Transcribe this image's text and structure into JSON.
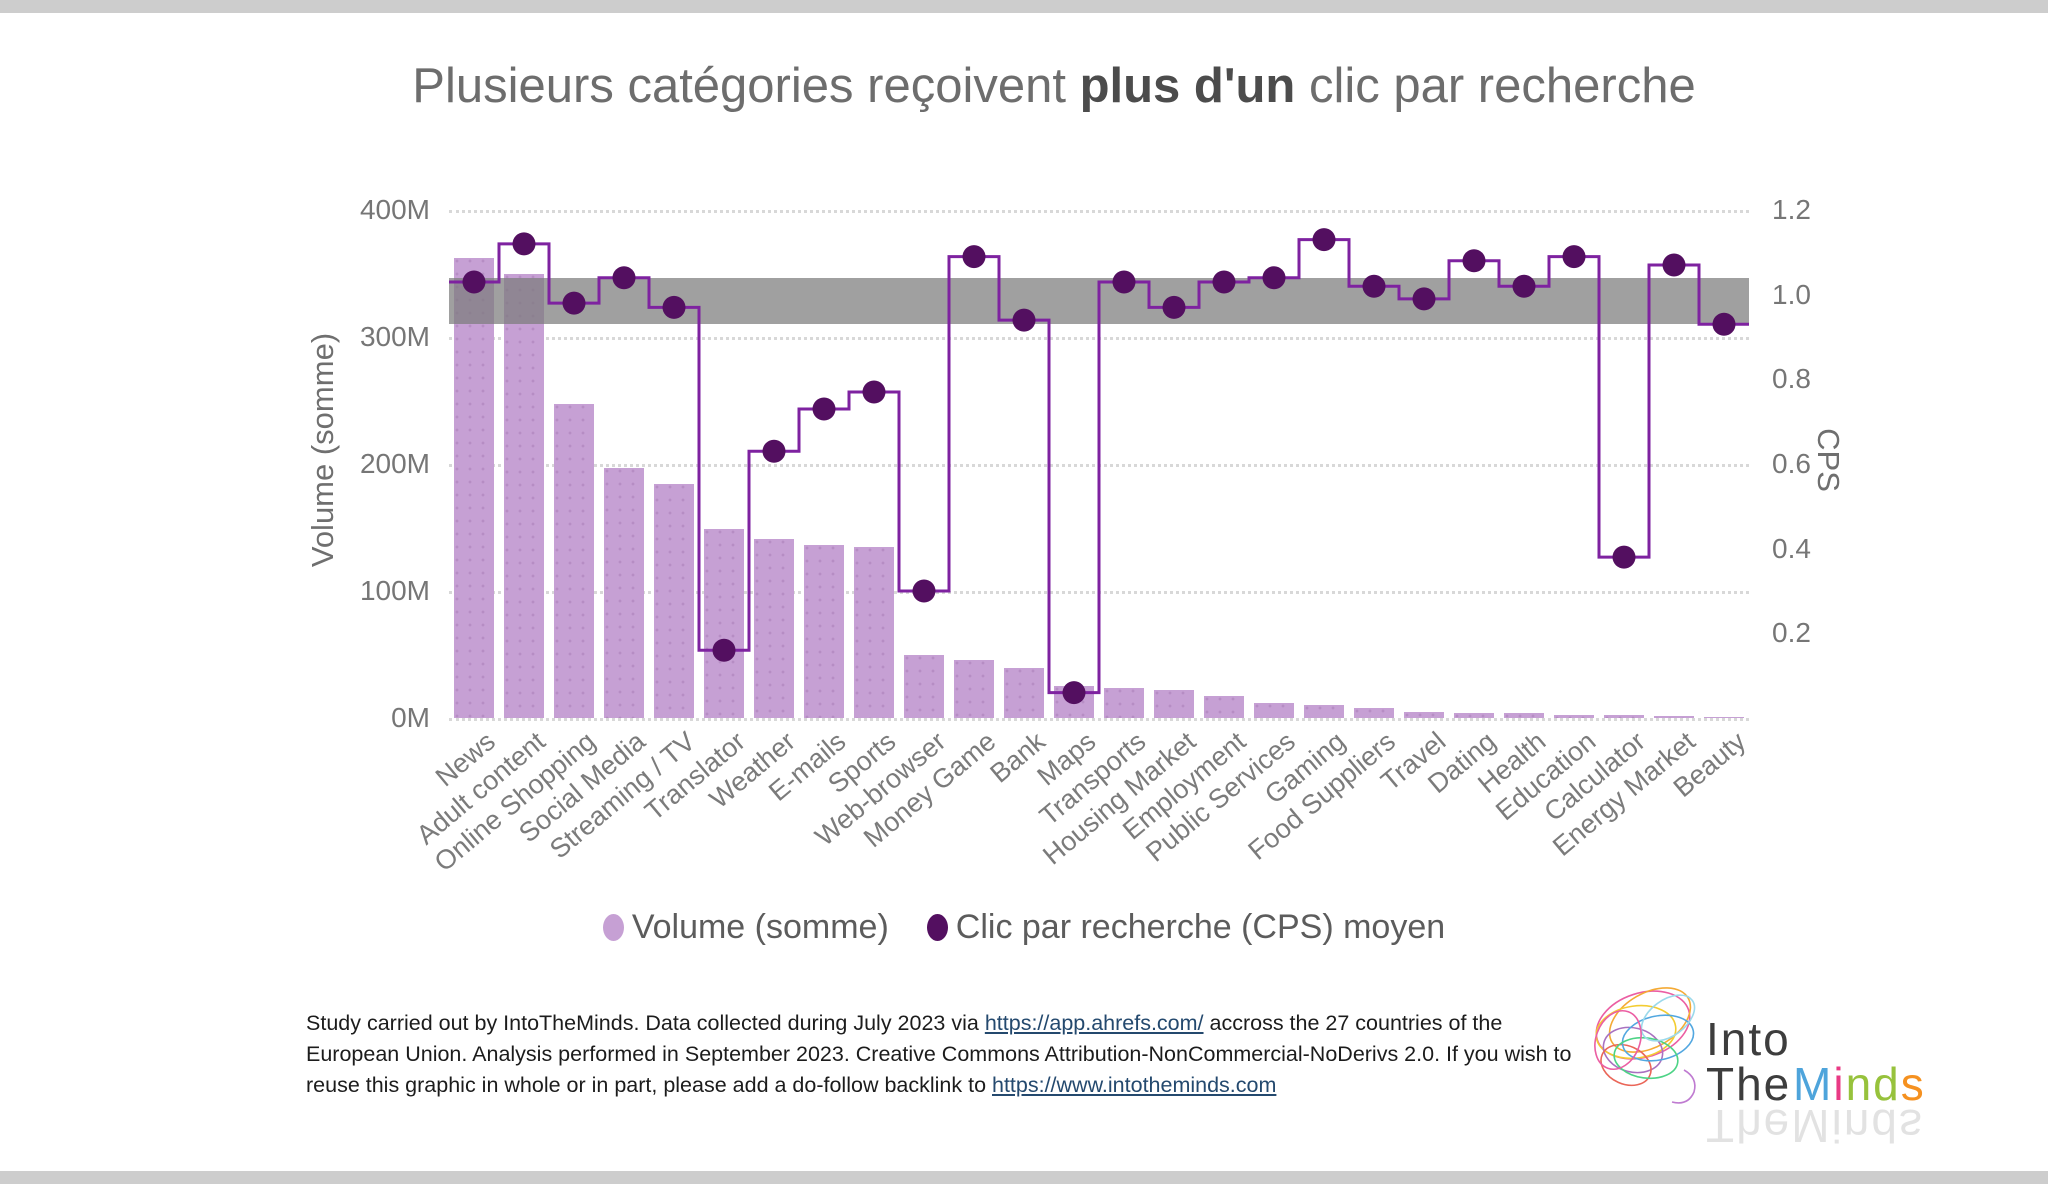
{
  "title": {
    "prefix": "Plusieurs catégories reçoivent ",
    "bold": "plus d'un",
    "suffix": " clic par recherche"
  },
  "chart_data": {
    "type": "combo bar + stepped line",
    "categories": [
      "News",
      "Adult content",
      "Online Shopping",
      "Social Media",
      "Streaming / TV",
      "Translator",
      "Weather",
      "E-mails",
      "Sports",
      "Web-browser",
      "Money Game",
      "Bank",
      "Maps",
      "Transports",
      "Housing Market",
      "Employment",
      "Public Services",
      "Gaming",
      "Food Suppliers",
      "Travel",
      "Dating",
      "Health",
      "Education",
      "Calculator",
      "Energy Market",
      "Beauty"
    ],
    "series": [
      {
        "name": "Volume (somme)",
        "type": "bar",
        "axis": "left",
        "unit": "millions",
        "values": [
          362,
          350,
          247,
          197,
          184,
          149,
          141,
          136,
          135,
          50,
          46,
          39,
          25,
          24,
          22,
          17,
          12,
          10,
          8,
          5,
          4.2,
          4.2,
          2.5,
          2,
          1.2,
          0.8
        ]
      },
      {
        "name": "Clic par recherche (CPS) moyen",
        "type": "step-line",
        "axis": "right",
        "values": [
          1.03,
          1.12,
          0.98,
          1.04,
          0.97,
          0.16,
          0.63,
          0.73,
          0.77,
          0.3,
          1.09,
          0.94,
          0.06,
          1.03,
          0.97,
          1.03,
          1.04,
          1.13,
          1.02,
          0.99,
          1.08,
          1.02,
          1.09,
          0.38,
          1.07,
          0.93
        ]
      }
    ],
    "left_axis": {
      "title": "Volume (somme)",
      "tick_labels": [
        "400M",
        "300M",
        "200M",
        "100M",
        "0M"
      ],
      "min": 0,
      "max": 400
    },
    "right_axis": {
      "title": "CPS",
      "tick_labels": [
        "1.2",
        "1.0",
        "0.8",
        "0.6",
        "0.4",
        "0.2"
      ],
      "tick_values": [
        1.2,
        1.0,
        0.8,
        0.6,
        0.4,
        0.2
      ],
      "min": 0,
      "max": 1.2
    },
    "reference_band": {
      "from": 0.93,
      "to": 1.04,
      "color": "rgba(123,123,123,0.72)"
    },
    "grid": "dotted horizontal at left-axis ticks",
    "legend_position": "bottom-center",
    "colors": {
      "bar": "#c6a0d4",
      "line": "#7e22a0",
      "dot": "#530f60"
    }
  },
  "legend": [
    {
      "label": "Volume (somme)",
      "color": "#c6a0d4"
    },
    {
      "label": "Clic par recherche (CPS) moyen",
      "color": "#530f60"
    }
  ],
  "footer": {
    "segments": [
      {
        "text": "Study carried out by IntoTheMinds. Data collected during July 2023 via "
      },
      {
        "text": "https://app.ahrefs.com/",
        "link": true
      },
      {
        "text": " accross the 27 countries of the European Union. Analysis performed in September 2023. Creative Commons Attribution-NonCommercial-NoDerivs 2.0. If you wish to reuse this graphic in whole or in part, please add a do-follow backlink to "
      },
      {
        "text": "https://www.intotheminds.com",
        "link": true
      }
    ]
  },
  "logo": {
    "line1": "Into",
    "line2": "The",
    "word2_letters": [
      {
        "ch": "M",
        "color": "#4ea4db"
      },
      {
        "ch": "i",
        "color": "#e93a84"
      },
      {
        "ch": "n",
        "color": "#97c23c"
      },
      {
        "ch": "d",
        "color": "#97c23c"
      },
      {
        "ch": "s",
        "color": "#f59120"
      }
    ]
  }
}
